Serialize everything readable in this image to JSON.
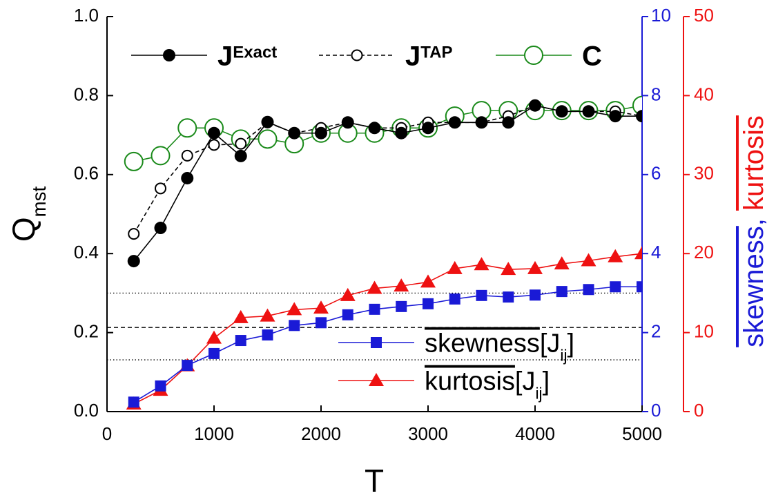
{
  "chart_data": {
    "type": "line",
    "xlabel": "T",
    "ylabel": [
      "Q",
      "mst"
    ],
    "ylabel_style": [
      "",
      "sub"
    ],
    "y2label": [
      "skewness",
      ", ",
      "kurtosis"
    ],
    "y2label_style": [
      "overline",
      "",
      "overline"
    ],
    "y2label_colors": [
      "#1a1ad6",
      "#1a1ad6",
      "#ee1111"
    ],
    "x": [
      250,
      500,
      750,
      1000,
      1250,
      1500,
      1750,
      2000,
      2250,
      2500,
      2750,
      3000,
      3250,
      3500,
      3750,
      4000,
      4250,
      4500,
      4750,
      5000
    ],
    "xlim": [
      0,
      5000
    ],
    "xticks": [
      0,
      1000,
      2000,
      3000,
      4000,
      5000
    ],
    "ylim": [
      0,
      1
    ],
    "yticks": [
      {
        "value": 0,
        "label": "0.0"
      },
      0.2,
      0.4,
      0.6,
      0.8,
      {
        "value": 1,
        "label": "1.0"
      }
    ],
    "y2lim": [
      0,
      10
    ],
    "y2ticks": [
      0,
      2,
      4,
      6,
      8,
      10
    ],
    "y2color": "#1a1ad6",
    "y3lim": [
      0,
      50
    ],
    "y3ticks": [
      0,
      10,
      20,
      30,
      40,
      50
    ],
    "y3color": "#ee1111",
    "reference_lines": [
      {
        "value": 0.3,
        "dash": "dotted"
      },
      {
        "value": 0.213,
        "dash": "dashed"
      },
      {
        "value": 0.131,
        "dash": "dotted"
      }
    ],
    "series": [
      {
        "name": [
          "J",
          "Exact"
        ],
        "name_style": [
          "bold",
          "sup"
        ],
        "color": "#000000",
        "marker": "filled-circle",
        "dash": "solid",
        "values": [
          0.381,
          0.465,
          0.591,
          0.705,
          0.647,
          0.733,
          0.705,
          0.705,
          0.732,
          0.718,
          0.705,
          0.718,
          0.732,
          0.732,
          0.732,
          0.775,
          0.76,
          0.76,
          0.748,
          0.748
        ]
      },
      {
        "name": [
          "J",
          "TAP"
        ],
        "name_style": [
          "bold",
          "sup"
        ],
        "color": "#000000",
        "marker": "open-circle",
        "dash": "dashed",
        "values": [
          0.45,
          0.565,
          0.648,
          0.675,
          0.678,
          0.732,
          0.705,
          0.718,
          0.732,
          0.718,
          0.718,
          0.732,
          0.732,
          0.732,
          0.748,
          0.775,
          0.76,
          0.76,
          0.76,
          0.748
        ]
      },
      {
        "name": [
          "C"
        ],
        "name_style": [
          "bold"
        ],
        "color": "#1a8a1a",
        "marker": "open-circle-large",
        "dash": "solid",
        "values": [
          0.633,
          0.648,
          0.718,
          0.718,
          0.69,
          0.69,
          0.678,
          0.705,
          0.705,
          0.705,
          0.718,
          0.718,
          0.748,
          0.762,
          0.762,
          0.762,
          0.762,
          0.762,
          0.762,
          0.775
        ]
      },
      {
        "name": [
          "skewness",
          "[J",
          "ij",
          "]"
        ],
        "name_style": [
          "overline",
          "",
          "sub",
          ""
        ],
        "color": "#1a1ad6",
        "marker": "square",
        "dash": "solid",
        "axis": "y2",
        "values": [
          0.24,
          0.65,
          1.17,
          1.47,
          1.8,
          1.94,
          2.18,
          2.25,
          2.45,
          2.59,
          2.66,
          2.73,
          2.85,
          2.94,
          2.9,
          2.95,
          3.04,
          3.09,
          3.16,
          3.16
        ]
      },
      {
        "name": [
          "kurtosis",
          "[J",
          "ij",
          "]"
        ],
        "name_style": [
          "overline",
          "",
          "sub",
          ""
        ],
        "color": "#ee1111",
        "marker": "triangle",
        "dash": "solid",
        "axis": "y3",
        "values": [
          0.96,
          2.7,
          5.8,
          9.3,
          11.9,
          12.1,
          12.9,
          13.1,
          14.7,
          15.6,
          15.9,
          16.4,
          18.1,
          18.6,
          18.0,
          18.1,
          18.7,
          19.1,
          19.6,
          20.0
        ]
      }
    ]
  }
}
